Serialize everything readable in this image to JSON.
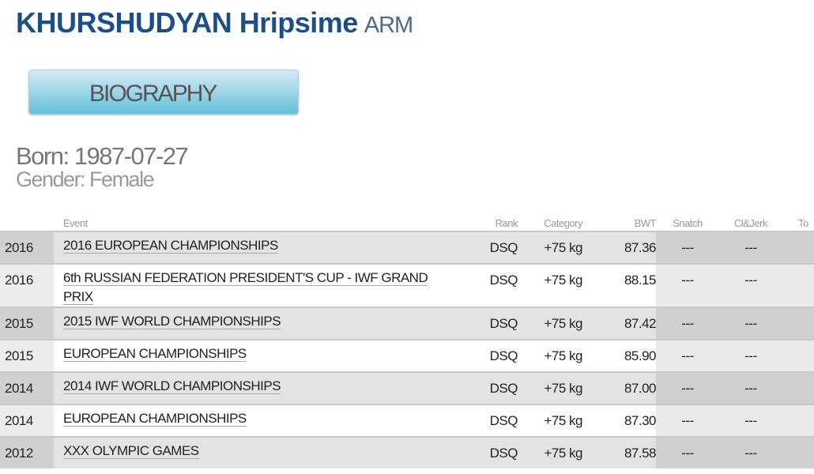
{
  "athlete": {
    "name": "KHURSHUDYAN Hripsime",
    "country": "ARM",
    "born": "Born: 1987-07-27",
    "gender": "Gender: Female"
  },
  "biography_button": "BIOGRAPHY",
  "table": {
    "headers": {
      "year": "",
      "event": "Event",
      "rank": "Rank",
      "category": "Category",
      "bwt": "BWT",
      "snatch": "Snatch",
      "cj": "Cl&Jerk",
      "total": "To"
    },
    "rows": [
      {
        "year": "2016",
        "event": "2016 EUROPEAN CHAMPIONSHIPS",
        "rank": "DSQ",
        "category": "+75 kg",
        "bwt": "87.36",
        "snatch": "---",
        "cj": "---"
      },
      {
        "year": "2016",
        "event": "6th RUSSIAN FEDERATION PRESIDENT'S CUP - IWF GRAND PRIX",
        "rank": "DSQ",
        "category": "+75 kg",
        "bwt": "88.15",
        "snatch": "---",
        "cj": "---"
      },
      {
        "year": "2015",
        "event": "2015 IWF WORLD CHAMPIONSHIPS",
        "rank": "DSQ",
        "category": "+75 kg",
        "bwt": "87.42",
        "snatch": "---",
        "cj": "---"
      },
      {
        "year": "2015",
        "event": "EUROPEAN CHAMPIONSHIPS",
        "rank": "DSQ",
        "category": "+75 kg",
        "bwt": "85.90",
        "snatch": "---",
        "cj": "---"
      },
      {
        "year": "2014",
        "event": "2014 IWF WORLD CHAMPIONSHIPS",
        "rank": "DSQ",
        "category": "+75 kg",
        "bwt": "87.00",
        "snatch": "---",
        "cj": "---"
      },
      {
        "year": "2014",
        "event": "EUROPEAN CHAMPIONSHIPS",
        "rank": "DSQ",
        "category": "+75 kg",
        "bwt": "87.30",
        "snatch": "---",
        "cj": "---"
      },
      {
        "year": "2012",
        "event": "XXX OLYMPIC GAMES",
        "rank": "DSQ",
        "category": "+75 kg",
        "bwt": "87.58",
        "snatch": "---",
        "cj": "---"
      }
    ]
  },
  "colors": {
    "title": "#1d4f86",
    "button_gradient_top": "#d4ecf5",
    "button_gradient_bottom": "#62c0da"
  }
}
